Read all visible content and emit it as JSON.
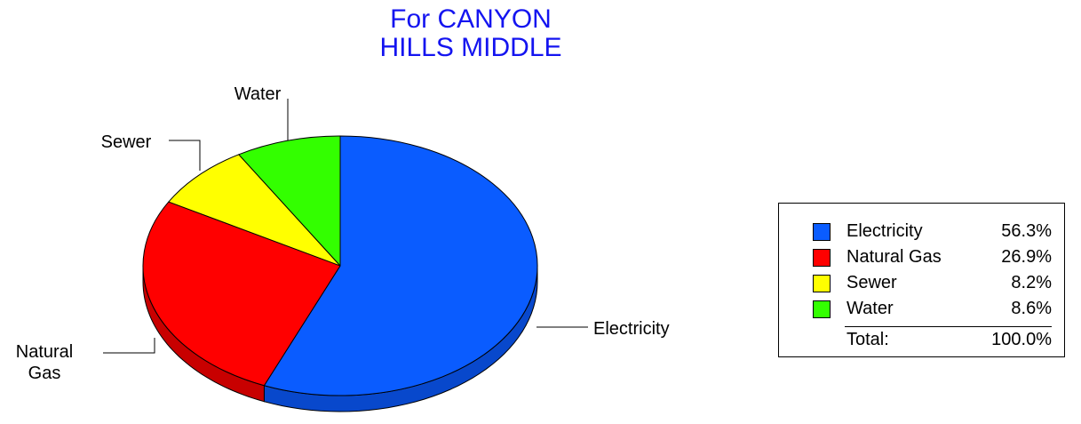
{
  "chart_data": {
    "type": "pie",
    "title": [
      "For CANYON",
      "HILLS MIDDLE"
    ],
    "slices": [
      {
        "label": "Electricity",
        "callout": [
          "Electricity"
        ],
        "value": 56.3,
        "value_label": "56.3%",
        "color": "#0a5cff",
        "side_color": "#0848cc"
      },
      {
        "label": "Natural Gas",
        "callout": [
          "Natural",
          "Gas"
        ],
        "value": 26.9,
        "value_label": "26.9%",
        "color": "#ff0000",
        "side_color": "#c80000"
      },
      {
        "label": "Sewer",
        "callout": [
          "Sewer"
        ],
        "value": 8.2,
        "value_label": "8.2%",
        "color": "#ffff00",
        "side_color": "#c8c800"
      },
      {
        "label": "Water",
        "callout": [
          "Water"
        ],
        "value": 8.6,
        "value_label": "8.6%",
        "color": "#33ff00",
        "side_color": "#26c800"
      }
    ],
    "legend": {
      "placement": "right",
      "total_label": "Total:",
      "total_value": "100.0%"
    }
  }
}
